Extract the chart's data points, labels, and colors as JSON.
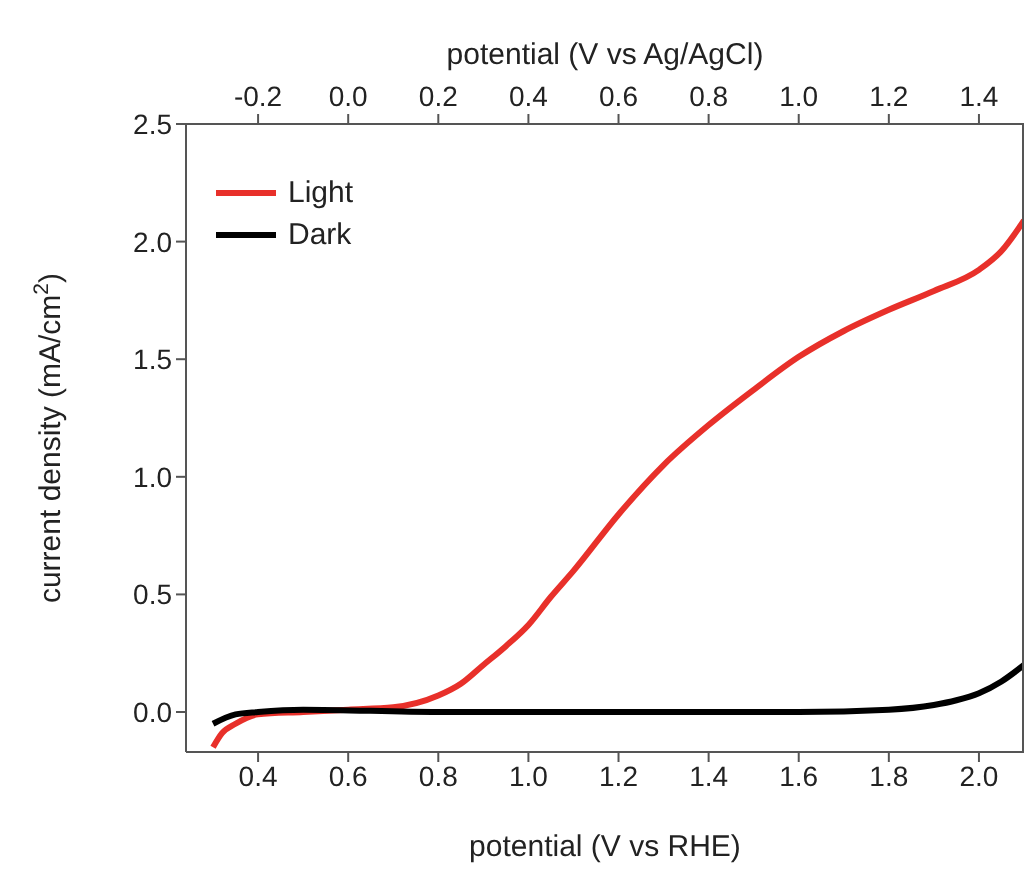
{
  "chart_data": {
    "type": "line",
    "xlabel": "potential (V vs RHE)",
    "x2label": "potential (V vs Ag/AgCl)",
    "ylabel": "current density (mA/cm$^{2}$)",
    "xlim": [
      0.24,
      2.1
    ],
    "xticks": [
      0.4,
      0.6,
      0.8,
      {
        "value": 1,
        "label": "1.0"
      },
      1.2,
      1.4,
      1.6,
      1.8,
      {
        "value": 2,
        "label": "2.0"
      }
    ],
    "x2lim": [
      -0.36,
      1.5
    ],
    "x2ticks": [
      -0.2,
      {
        "value": 0,
        "label": "0.0"
      },
      0.2,
      0.4,
      0.6,
      0.8,
      {
        "value": 1,
        "label": "1.0"
      },
      1.2,
      1.4
    ],
    "ylim": [
      -0.17,
      2.5
    ],
    "yticks": [
      {
        "value": 0,
        "label": "0.0"
      },
      0.5,
      {
        "value": 1,
        "label": "1.0"
      },
      1.5,
      {
        "value": 2,
        "label": "2.0"
      },
      2.5
    ],
    "legend": "top left",
    "series": [
      {
        "name": "Light",
        "color": "#e8302a",
        "x": [
          0.3,
          0.32,
          0.35,
          0.4,
          0.5,
          0.6,
          0.7,
          0.8,
          0.85,
          0.9,
          0.95,
          1.0,
          1.05,
          1.1,
          1.2,
          1.3,
          1.4,
          1.5,
          1.6,
          1.7,
          1.8,
          1.9,
          2.0,
          2.05,
          2.1
        ],
        "values": [
          -0.15,
          -0.09,
          -0.05,
          -0.01,
          0.0,
          0.01,
          0.02,
          0.07,
          0.12,
          0.2,
          0.28,
          0.37,
          0.49,
          0.6,
          0.84,
          1.05,
          1.22,
          1.37,
          1.51,
          1.62,
          1.71,
          1.79,
          1.88,
          1.96,
          2.09
        ]
      },
      {
        "name": "Dark",
        "color": "#000000",
        "x": [
          0.3,
          0.35,
          0.4,
          0.5,
          0.8,
          1.2,
          1.6,
          1.8,
          1.9,
          1.95,
          2.0,
          2.05,
          2.1
        ],
        "values": [
          -0.05,
          -0.01,
          0.0,
          0.01,
          0.0,
          0.0,
          0.0,
          0.01,
          0.03,
          0.05,
          0.08,
          0.13,
          0.2
        ]
      }
    ]
  }
}
